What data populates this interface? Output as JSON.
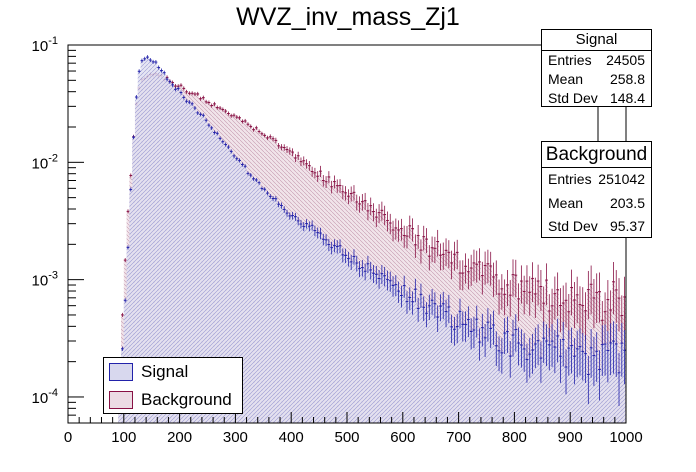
{
  "chart_data": {
    "type": "histogram",
    "title": "WVZ_inv_mass_Zj1",
    "xlabel": "",
    "ylabel": "",
    "xlim": [
      0,
      1000
    ],
    "ylim": [
      6e-05,
      0.1
    ],
    "yscale": "log",
    "x_ticks": [
      "0",
      "100",
      "200",
      "300",
      "400",
      "500",
      "600",
      "700",
      "800",
      "900",
      "1000"
    ],
    "y_ticks": [
      {
        "base": "10",
        "exp": "-1",
        "value": 0.1
      },
      {
        "base": "10",
        "exp": "-2",
        "value": 0.01
      },
      {
        "base": "10",
        "exp": "-3",
        "value": 0.001
      },
      {
        "base": "10",
        "exp": "-4",
        "value": 0.0001
      }
    ],
    "series": [
      {
        "name": "Signal",
        "line_color": "#2222aa",
        "fill_color": "#d8d8ee",
        "anchors": [
          [
            90,
            6e-05
          ],
          [
            100,
            0.0004
          ],
          [
            108,
            0.002
          ],
          [
            115,
            0.01
          ],
          [
            122,
            0.035
          ],
          [
            130,
            0.075
          ],
          [
            140,
            0.082
          ],
          [
            150,
            0.075
          ],
          [
            175,
            0.055
          ],
          [
            200,
            0.04
          ],
          [
            250,
            0.022
          ],
          [
            300,
            0.011
          ],
          [
            350,
            0.006
          ],
          [
            400,
            0.0035
          ],
          [
            450,
            0.0025
          ],
          [
            500,
            0.0016
          ],
          [
            550,
            0.0011
          ],
          [
            600,
            0.0008
          ],
          [
            650,
            0.0006
          ],
          [
            700,
            0.00045
          ],
          [
            750,
            0.00035
          ],
          [
            800,
            0.0003
          ],
          [
            850,
            0.00027
          ],
          [
            900,
            0.00025
          ],
          [
            950,
            0.00023
          ],
          [
            1000,
            0.00022
          ]
        ]
      },
      {
        "name": "Background",
        "line_color": "#881144",
        "fill_color": "#ecdce4",
        "anchors": [
          [
            90,
            6e-05
          ],
          [
            100,
            0.001
          ],
          [
            108,
            0.004
          ],
          [
            115,
            0.012
          ],
          [
            122,
            0.03
          ],
          [
            130,
            0.05
          ],
          [
            140,
            0.055
          ],
          [
            150,
            0.056
          ],
          [
            175,
            0.052
          ],
          [
            200,
            0.045
          ],
          [
            250,
            0.033
          ],
          [
            300,
            0.024
          ],
          [
            350,
            0.018
          ],
          [
            400,
            0.012
          ],
          [
            450,
            0.008
          ],
          [
            500,
            0.0055
          ],
          [
            550,
            0.0038
          ],
          [
            600,
            0.0027
          ],
          [
            650,
            0.0019
          ],
          [
            700,
            0.0014
          ],
          [
            750,
            0.0011
          ],
          [
            800,
            0.0009
          ],
          [
            850,
            0.0008
          ],
          [
            900,
            0.0007
          ],
          [
            950,
            0.0007
          ],
          [
            1000,
            0.0007
          ]
        ]
      }
    ],
    "bin_width": 5,
    "stats": [
      {
        "title": "Signal",
        "entries": "24505",
        "mean": "258.8",
        "std_dev": "148.4"
      },
      {
        "title": "Background",
        "entries": "251042",
        "mean": "203.5",
        "std_dev": "95.37"
      }
    ],
    "stat_labels": {
      "entries": "Entries",
      "mean": "Mean",
      "std_dev": "Std Dev"
    },
    "legend": [
      "Signal",
      "Background"
    ]
  }
}
